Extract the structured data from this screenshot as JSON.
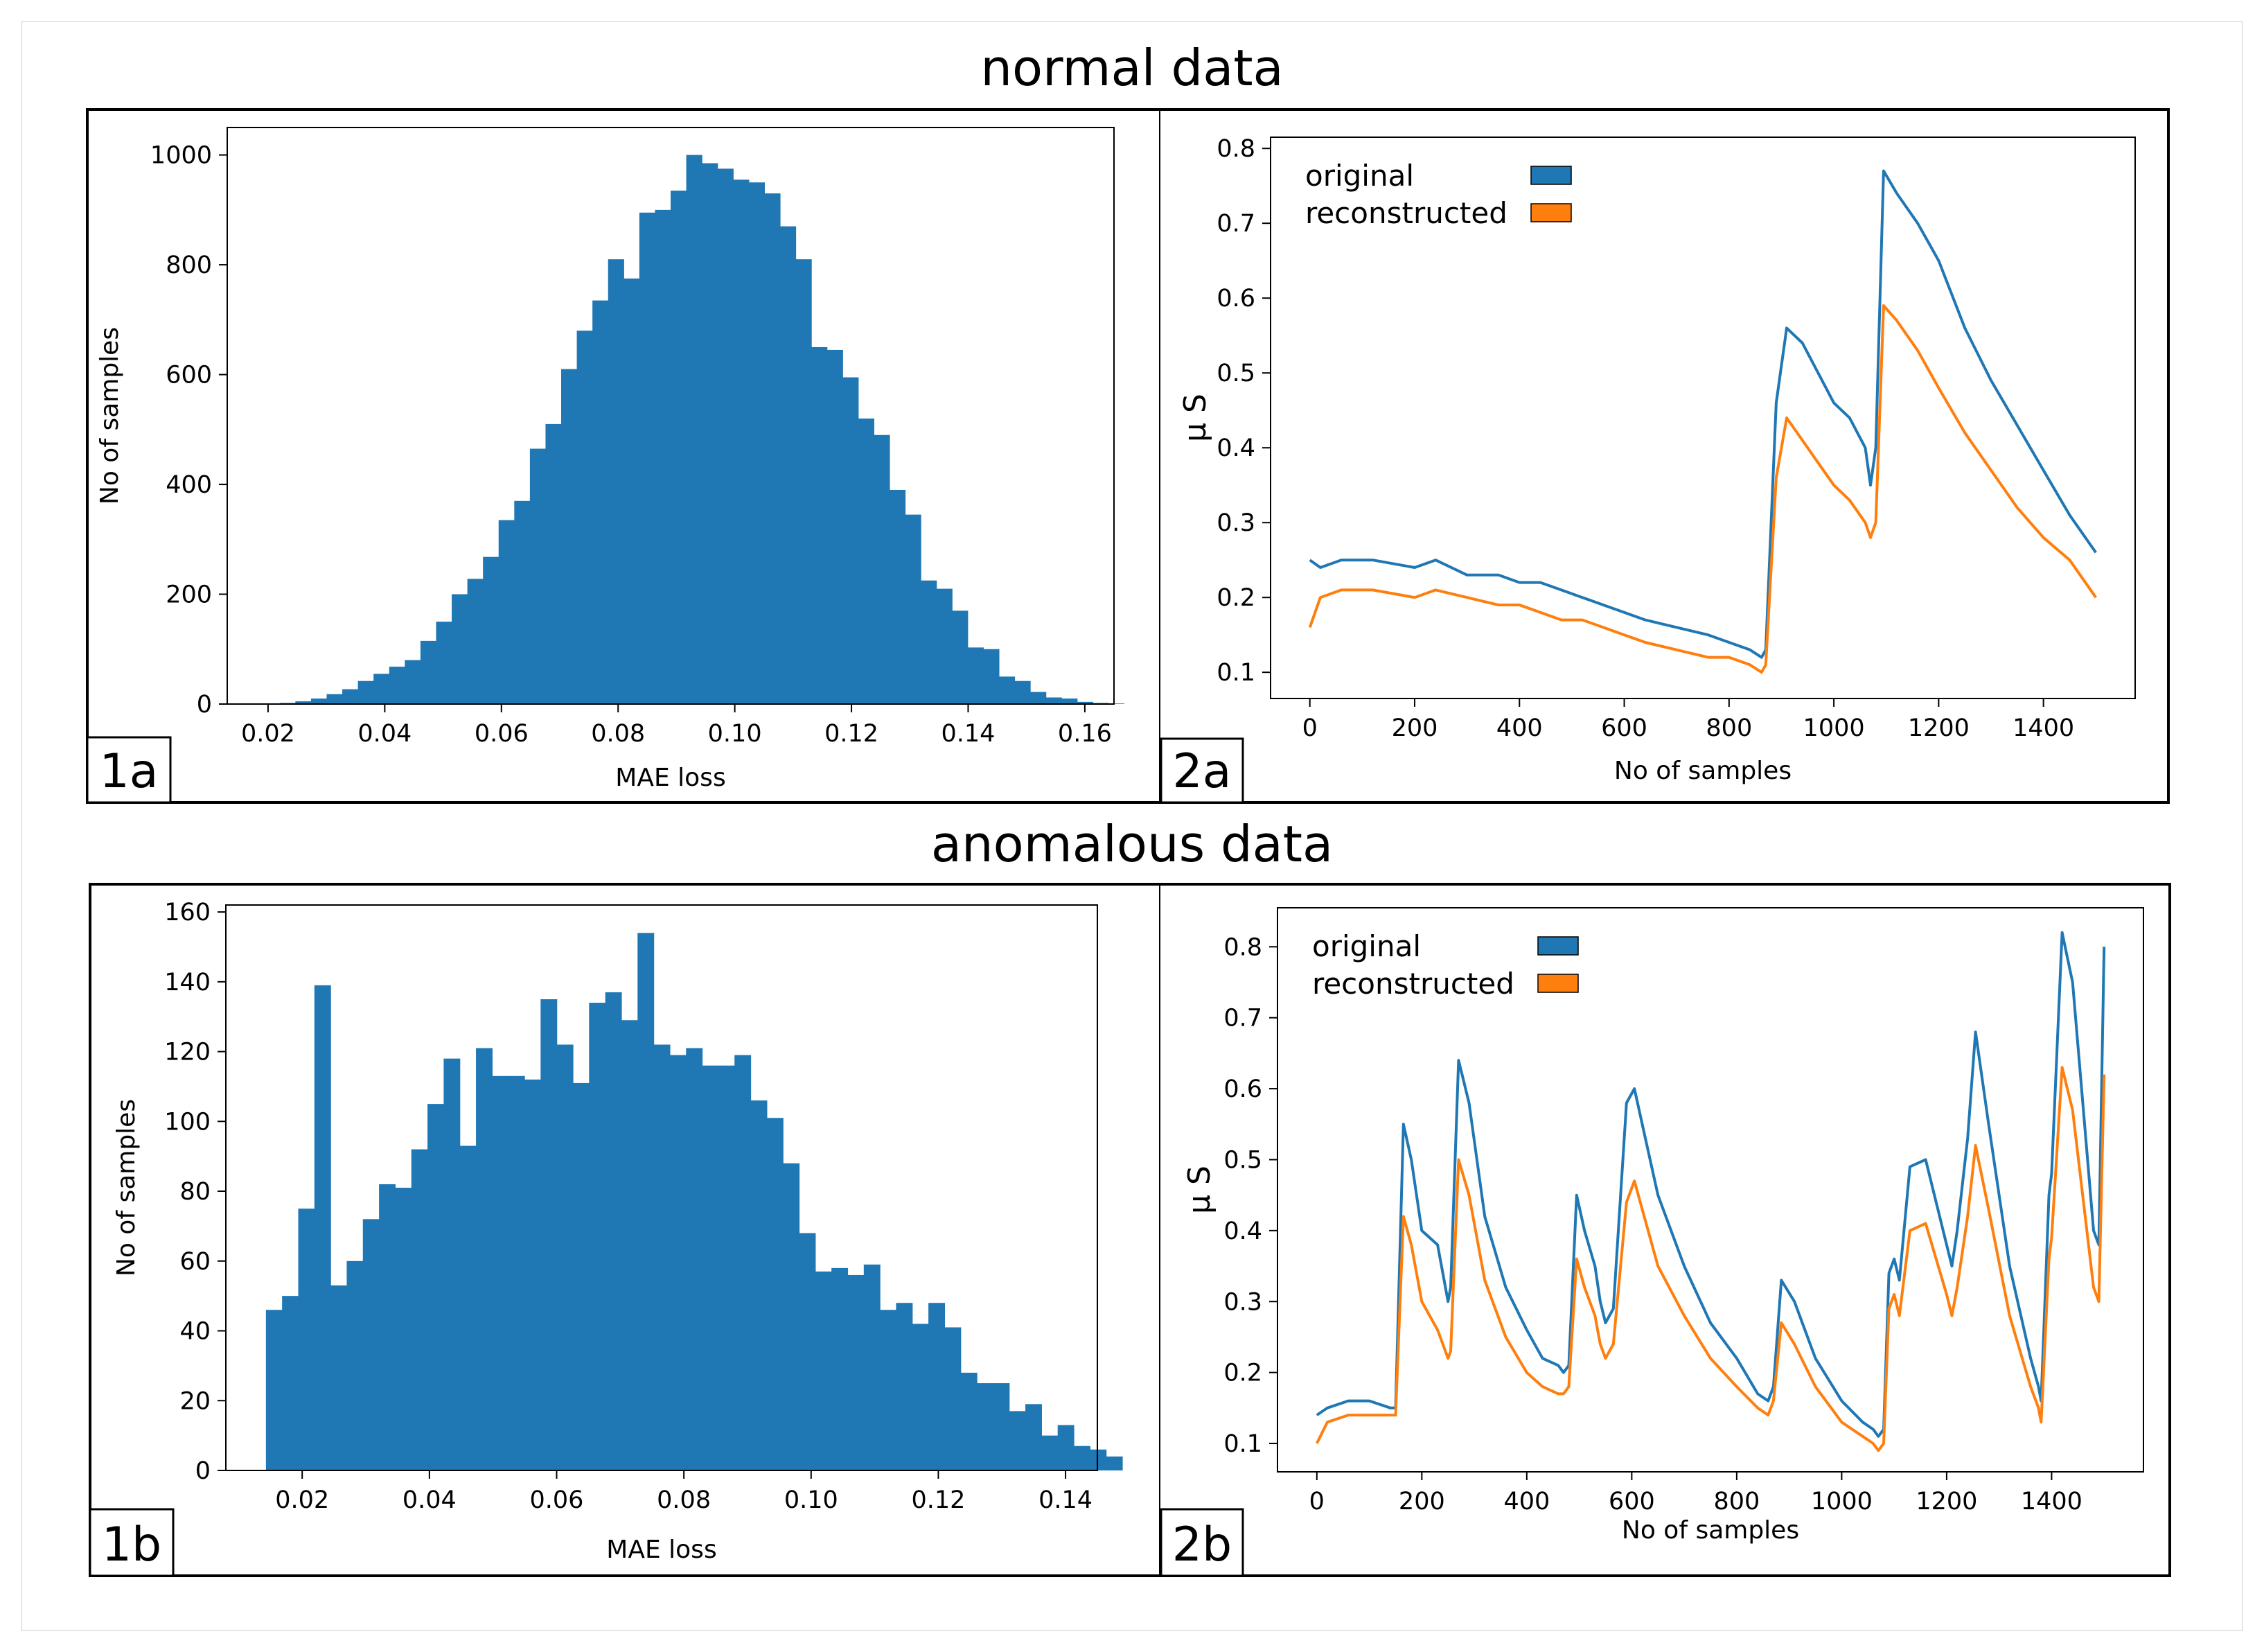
{
  "titles": {
    "normal": "normal data",
    "anomalous": "anomalous data"
  },
  "colors": {
    "bar": "#1f77b4",
    "original": "#1f77b4",
    "reconstructed": "#ff7f0e"
  },
  "chart_data": [
    {
      "id": "1a",
      "panel_label": "1a",
      "type": "bar",
      "xlabel": "MAE loss",
      "ylabel": "No of samples",
      "xlim": [
        0.013,
        0.165
      ],
      "ylim": [
        0,
        1050
      ],
      "xticks": [
        0.02,
        0.04,
        0.06,
        0.08,
        0.1,
        0.12,
        0.14,
        0.16
      ],
      "xtick_labels": [
        "0.02",
        "0.04",
        "0.06",
        "0.08",
        "0.10",
        "0.12",
        "0.14",
        "0.16"
      ],
      "yticks": [
        0,
        200,
        400,
        600,
        800,
        1000
      ],
      "ytick_labels": [
        "0",
        "200",
        "400",
        "600",
        "800",
        "1000"
      ],
      "bin_start": 0.022,
      "bin_width": 0.00268,
      "values": [
        2,
        5,
        10,
        18,
        27,
        42,
        55,
        68,
        80,
        115,
        150,
        200,
        228,
        268,
        335,
        370,
        465,
        510,
        610,
        680,
        735,
        810,
        775,
        895,
        900,
        935,
        1000,
        985,
        975,
        955,
        950,
        930,
        870,
        810,
        650,
        645,
        595,
        520,
        490,
        390,
        345,
        225,
        210,
        170,
        103,
        100,
        50,
        42,
        22,
        12,
        10,
        4,
        2,
        1
      ]
    },
    {
      "id": "2a",
      "panel_label": "2a",
      "type": "line",
      "xlabel": "No of samples",
      "ylabel": "μ S",
      "xlim": [
        -75,
        1575
      ],
      "ylim": [
        0.065,
        0.815
      ],
      "xticks": [
        0,
        200,
        400,
        600,
        800,
        1000,
        1200,
        1400
      ],
      "xtick_labels": [
        "0",
        "200",
        "400",
        "600",
        "800",
        "1000",
        "1200",
        "1400"
      ],
      "yticks": [
        0.1,
        0.2,
        0.3,
        0.4,
        0.5,
        0.6,
        0.7,
        0.8
      ],
      "ytick_labels": [
        "0.1",
        "0.2",
        "0.3",
        "0.4",
        "0.5",
        "0.6",
        "0.7",
        "0.8"
      ],
      "legend": {
        "position": "top-left",
        "entries": [
          "original",
          "reconstructed"
        ]
      },
      "series": [
        {
          "name": "original",
          "x": [
            0,
            20,
            60,
            120,
            200,
            240,
            300,
            360,
            400,
            440,
            480,
            520,
            560,
            600,
            640,
            700,
            760,
            800,
            840,
            862,
            870,
            890,
            910,
            940,
            970,
            1000,
            1030,
            1060,
            1070,
            1080,
            1095,
            1120,
            1160,
            1200,
            1250,
            1300,
            1350,
            1400,
            1450,
            1500
          ],
          "y": [
            0.25,
            0.24,
            0.25,
            0.25,
            0.24,
            0.25,
            0.23,
            0.23,
            0.22,
            0.22,
            0.21,
            0.2,
            0.19,
            0.18,
            0.17,
            0.16,
            0.15,
            0.14,
            0.13,
            0.12,
            0.13,
            0.46,
            0.56,
            0.54,
            0.5,
            0.46,
            0.44,
            0.4,
            0.35,
            0.4,
            0.77,
            0.74,
            0.7,
            0.65,
            0.56,
            0.49,
            0.43,
            0.37,
            0.31,
            0.26
          ]
        },
        {
          "name": "reconstructed",
          "x": [
            0,
            20,
            60,
            120,
            200,
            240,
            300,
            360,
            400,
            440,
            480,
            520,
            560,
            600,
            640,
            700,
            760,
            800,
            840,
            862,
            870,
            890,
            910,
            940,
            970,
            1000,
            1030,
            1060,
            1070,
            1080,
            1095,
            1120,
            1160,
            1200,
            1250,
            1300,
            1350,
            1400,
            1450,
            1500
          ],
          "y": [
            0.16,
            0.2,
            0.21,
            0.21,
            0.2,
            0.21,
            0.2,
            0.19,
            0.19,
            0.18,
            0.17,
            0.17,
            0.16,
            0.15,
            0.14,
            0.13,
            0.12,
            0.12,
            0.11,
            0.1,
            0.11,
            0.36,
            0.44,
            0.41,
            0.38,
            0.35,
            0.33,
            0.3,
            0.28,
            0.3,
            0.59,
            0.57,
            0.53,
            0.48,
            0.42,
            0.37,
            0.32,
            0.28,
            0.25,
            0.2
          ]
        }
      ]
    },
    {
      "id": "1b",
      "panel_label": "1b",
      "type": "bar",
      "xlabel": "MAE loss",
      "ylabel": "No of samples",
      "xlim": [
        0.008,
        0.145
      ],
      "ylim": [
        0,
        162
      ],
      "xticks": [
        0.02,
        0.04,
        0.06,
        0.08,
        0.1,
        0.12,
        0.14
      ],
      "xtick_labels": [
        "0.02",
        "0.04",
        "0.06",
        "0.08",
        "0.10",
        "0.12",
        "0.14"
      ],
      "yticks": [
        0,
        20,
        40,
        60,
        80,
        100,
        120,
        140,
        160
      ],
      "ytick_labels": [
        "0",
        "20",
        "40",
        "60",
        "80",
        "100",
        "120",
        "140",
        "160"
      ],
      "bin_start": 0.0143,
      "bin_width": 0.00254,
      "values": [
        46,
        50,
        75,
        139,
        53,
        60,
        72,
        82,
        81,
        92,
        105,
        118,
        93,
        121,
        113,
        113,
        112,
        135,
        122,
        111,
        134,
        137,
        129,
        154,
        122,
        119,
        121,
        116,
        116,
        119,
        106,
        101,
        88,
        68,
        57,
        58,
        56,
        59,
        46,
        48,
        42,
        48,
        41,
        28,
        25,
        25,
        17,
        19,
        10,
        13,
        7,
        6,
        4
      ],
      "values_note_x": [
        0.0143,
        0.137
      ]
    },
    {
      "id": "2b",
      "panel_label": "2b",
      "type": "line",
      "xlabel": "No of samples",
      "ylabel": "μ S",
      "xlim": [
        -75,
        1575
      ],
      "ylim": [
        0.06,
        0.855
      ],
      "xticks": [
        0,
        200,
        400,
        600,
        800,
        1000,
        1200,
        1400
      ],
      "xtick_labels": [
        "0",
        "200",
        "400",
        "600",
        "800",
        "1000",
        "1200",
        "1400"
      ],
      "yticks": [
        0.1,
        0.2,
        0.3,
        0.4,
        0.5,
        0.6,
        0.7,
        0.8
      ],
      "ytick_labels": [
        "0.1",
        "0.2",
        "0.3",
        "0.4",
        "0.5",
        "0.6",
        "0.7",
        "0.8"
      ],
      "legend": {
        "position": "top-left",
        "entries": [
          "original",
          "reconstructed"
        ]
      },
      "series": [
        {
          "name": "original",
          "x": [
            0,
            20,
            60,
            100,
            140,
            150,
            165,
            180,
            200,
            230,
            250,
            255,
            270,
            290,
            320,
            360,
            400,
            430,
            460,
            470,
            480,
            495,
            510,
            530,
            540,
            550,
            565,
            590,
            605,
            620,
            650,
            700,
            750,
            800,
            840,
            860,
            870,
            885,
            910,
            950,
            1000,
            1040,
            1060,
            1070,
            1080,
            1090,
            1100,
            1110,
            1130,
            1160,
            1200,
            1210,
            1220,
            1240,
            1255,
            1280,
            1320,
            1360,
            1375,
            1380,
            1395,
            1400,
            1420,
            1440,
            1480,
            1490,
            1500
          ],
          "y": [
            0.14,
            0.15,
            0.16,
            0.16,
            0.15,
            0.15,
            0.55,
            0.5,
            0.4,
            0.38,
            0.3,
            0.32,
            0.64,
            0.58,
            0.42,
            0.32,
            0.26,
            0.22,
            0.21,
            0.2,
            0.21,
            0.45,
            0.4,
            0.35,
            0.3,
            0.27,
            0.29,
            0.58,
            0.6,
            0.55,
            0.45,
            0.35,
            0.27,
            0.22,
            0.17,
            0.16,
            0.18,
            0.33,
            0.3,
            0.22,
            0.16,
            0.13,
            0.12,
            0.11,
            0.12,
            0.34,
            0.36,
            0.33,
            0.49,
            0.5,
            0.38,
            0.35,
            0.4,
            0.53,
            0.68,
            0.55,
            0.35,
            0.22,
            0.18,
            0.16,
            0.45,
            0.48,
            0.82,
            0.75,
            0.4,
            0.38,
            0.8
          ]
        },
        {
          "name": "reconstructed",
          "x": [
            0,
            20,
            60,
            100,
            140,
            150,
            165,
            180,
            200,
            230,
            250,
            255,
            270,
            290,
            320,
            360,
            400,
            430,
            460,
            470,
            480,
            495,
            510,
            530,
            540,
            550,
            565,
            590,
            605,
            620,
            650,
            700,
            750,
            800,
            840,
            860,
            870,
            885,
            910,
            950,
            1000,
            1040,
            1060,
            1070,
            1080,
            1090,
            1100,
            1110,
            1130,
            1160,
            1200,
            1210,
            1220,
            1240,
            1255,
            1280,
            1320,
            1360,
            1375,
            1380,
            1395,
            1400,
            1420,
            1440,
            1480,
            1490,
            1500
          ],
          "y": [
            0.1,
            0.13,
            0.14,
            0.14,
            0.14,
            0.14,
            0.42,
            0.38,
            0.3,
            0.26,
            0.22,
            0.23,
            0.5,
            0.45,
            0.33,
            0.25,
            0.2,
            0.18,
            0.17,
            0.17,
            0.18,
            0.36,
            0.32,
            0.28,
            0.24,
            0.22,
            0.24,
            0.44,
            0.47,
            0.43,
            0.35,
            0.28,
            0.22,
            0.18,
            0.15,
            0.14,
            0.16,
            0.27,
            0.24,
            0.18,
            0.13,
            0.11,
            0.1,
            0.09,
            0.1,
            0.29,
            0.31,
            0.28,
            0.4,
            0.41,
            0.31,
            0.28,
            0.32,
            0.42,
            0.52,
            0.43,
            0.28,
            0.18,
            0.15,
            0.13,
            0.36,
            0.39,
            0.63,
            0.57,
            0.32,
            0.3,
            0.62
          ]
        }
      ]
    }
  ]
}
